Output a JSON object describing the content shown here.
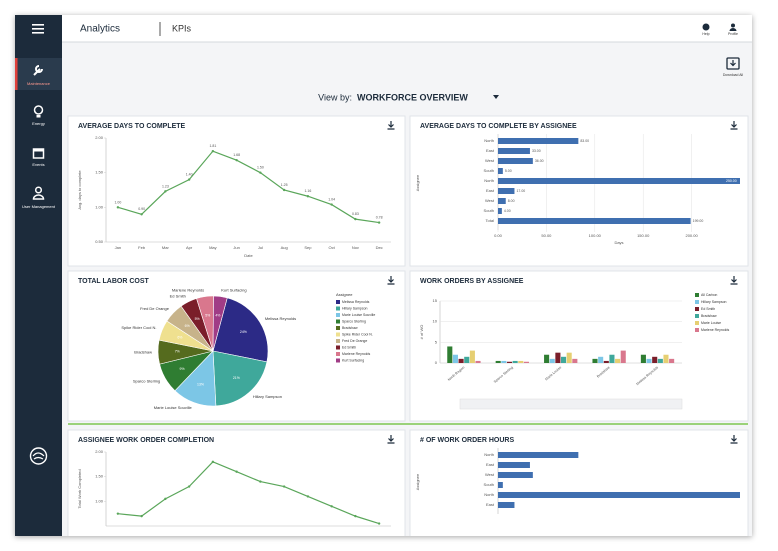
{
  "header": {
    "section": "Analytics",
    "page": "KPIs",
    "actions": [
      "Help",
      "Profile"
    ]
  },
  "nav": {
    "items": [
      "Maintenance",
      "Energy",
      "Events",
      "User Management"
    ]
  },
  "download": "Download All",
  "view_by": {
    "label": "View by:",
    "value": "WORKFORCE OVERVIEW"
  },
  "chart_data": [
    {
      "type": "line",
      "title": "AVERAGE DAYS TO COMPLETE",
      "categories": [
        "Jan",
        "Feb",
        "Mar",
        "Apr",
        "May",
        "Jun",
        "Jul",
        "Aug",
        "Sep",
        "Oct",
        "Nov",
        "Dec"
      ],
      "values": [
        1.0,
        0.9,
        1.23,
        1.4,
        1.81,
        1.68,
        1.5,
        1.25,
        1.16,
        1.04,
        0.83,
        0.78
      ],
      "value_labels": [
        "1.00",
        "0.90",
        "1.23",
        "1.40",
        "1.81",
        "1.68",
        "1.50",
        "1.25",
        "1.16",
        "1.04",
        "0.83",
        "0.78"
      ],
      "ylim": [
        0.5,
        2.0
      ],
      "yticks": [
        {
          "value": 0.5,
          "label": "0.50"
        },
        {
          "value": 1.0,
          "label": "1.00"
        },
        {
          "value": 1.5,
          "label": "1.50"
        },
        {
          "value": 2.0,
          "label": "2.00"
        }
      ],
      "ylabel": "Avg. days to complete",
      "xlabel": "Date",
      "color": "#5aa65a",
      "grid": false
    },
    {
      "type": "hbar",
      "title": "AVERAGE DAYS TO COMPLETE BY ASSIGNEE",
      "categories": [
        "North",
        "East",
        "West",
        "South",
        "North",
        "East",
        "West",
        "South",
        "Total"
      ],
      "values": [
        83,
        33,
        36,
        5,
        250,
        17,
        8,
        4,
        199
      ],
      "value_labels": [
        "83.00",
        "33.00",
        "36.00",
        "5.00",
        "250.00",
        "17.00",
        "8.00",
        "4.00",
        "199.00"
      ],
      "xlim": [
        0,
        250
      ],
      "xticks": [
        {
          "value": 0,
          "label": "0.00"
        },
        {
          "value": 50,
          "label": "50.00"
        },
        {
          "value": 100,
          "label": "100.00"
        },
        {
          "value": 150,
          "label": "150.00"
        },
        {
          "value": 200,
          "label": "200.00"
        }
      ],
      "ylabel": "Assignee",
      "xlabel": "Days",
      "color": "#3f6fb0",
      "grid": true
    },
    {
      "type": "pie",
      "title": "TOTAL LABOR COST",
      "categories": [
        "Melissa Reynolds",
        "Hillary Sampson",
        "Marie Louise Souville",
        "Sparco Sterling",
        "Bradshaw",
        "Spike Rider Cool N.",
        "Fred De Orange",
        "Ed Smith",
        "Marlene Reynolds",
        "Kurt Surfacing"
      ],
      "values": [
        24,
        21,
        13,
        9,
        7,
        6,
        6,
        5,
        5,
        4
      ],
      "value_labels": [
        "24%",
        "21%",
        "13%",
        "9%",
        "7%",
        "6%",
        "6%",
        "5%",
        "5%",
        "4%"
      ],
      "colors": [
        "#2c2a86",
        "#3fa89b",
        "#7cc6e6",
        "#2f7d32",
        "#556b1e",
        "#efe08f",
        "#c7b38a",
        "#7a1e2a",
        "#d9778d",
        "#a03c86"
      ],
      "legend_title": "Assignee",
      "legend": "right"
    },
    {
      "type": "bar",
      "title": "WORK ORDERS BY ASSIGNEE",
      "categories": [
        "North Region",
        "Sparco Sterling",
        "Marie Louise",
        "Bradshaw",
        "Melissa Reynolds"
      ],
      "series": [
        {
          "name": "All Carbon",
          "color": "#2f7d32",
          "values": [
            4,
            0.5,
            2,
            1,
            2
          ]
        },
        {
          "name": "Hillary Sampson",
          "color": "#7cc6e6",
          "values": [
            2,
            0.5,
            1,
            1.5,
            1
          ]
        },
        {
          "name": "Ed Smith",
          "color": "#7a1e2a",
          "values": [
            1,
            0.3,
            2.5,
            0.5,
            1.5
          ]
        },
        {
          "name": "Bradshaw",
          "color": "#3fa89b",
          "values": [
            1.5,
            0.5,
            1.5,
            2,
            1
          ]
        },
        {
          "name": "Marie Louise",
          "color": "#e6cf72",
          "values": [
            3,
            0.5,
            2.5,
            1,
            2
          ]
        },
        {
          "name": "Marlene Reynolds",
          "color": "#d9778d",
          "values": [
            0.5,
            0.3,
            1,
            3,
            1
          ]
        }
      ],
      "ylim": [
        0,
        15
      ],
      "yticks": [
        0,
        5,
        10,
        15
      ],
      "ylabel": "# of WO",
      "legend": "right",
      "grid": true
    },
    {
      "type": "line",
      "title": "ASSIGNEE WORK ORDER COMPLETION",
      "values": [
        0.75,
        0.7,
        1.05,
        1.3,
        1.8,
        1.6,
        1.4,
        1.3,
        1.1,
        0.9,
        0.7,
        0.55
      ],
      "ylim": [
        0.5,
        2.0
      ],
      "yticks": [
        {
          "value": 1.0,
          "label": "1.00"
        },
        {
          "value": 1.5,
          "label": "1.50"
        },
        {
          "value": 2.0,
          "label": "2.00"
        }
      ],
      "ylabel": "Total Work Completed",
      "color": "#5aa65a",
      "grid": false
    },
    {
      "type": "hbar",
      "title": "# OF WORK ORDER HOURS",
      "categories": [
        "North",
        "East",
        "West",
        "South",
        "North",
        "East"
      ],
      "values": [
        83,
        33,
        36,
        5,
        250,
        17
      ],
      "xlim": [
        0,
        250
      ],
      "ylabel": "Assignee",
      "color": "#3f6fb0",
      "grid": true
    }
  ]
}
